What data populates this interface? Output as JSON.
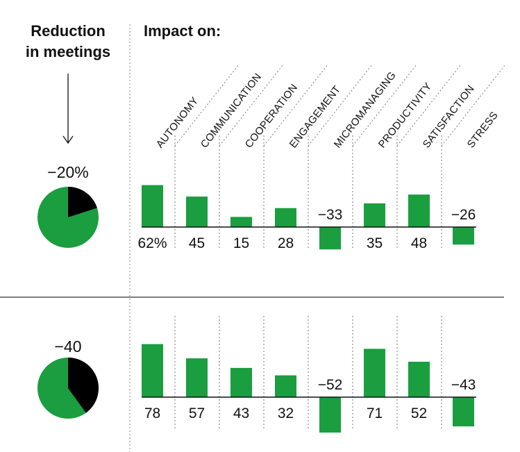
{
  "left_header": [
    "Reduction",
    "in meetings"
  ],
  "right_header": "Impact on:",
  "colors": {
    "bar": "#1a9e3f",
    "pie_remainder": "#000000",
    "ink": "#111111"
  },
  "chart_data": {
    "type": "bar",
    "categories": [
      "AUTONOMY",
      "COMMUNICATION",
      "COOPERATION",
      "ENGAGEMENT",
      "MICROMANAGING",
      "PRODUCTIVITY",
      "SATISFACTION",
      "STRESS"
    ],
    "series": [
      {
        "name": "−20%",
        "reduction_fraction": 0.2,
        "values": [
          62,
          45,
          15,
          28,
          -33,
          35,
          48,
          -26
        ],
        "labels": [
          "62%",
          "45",
          "15",
          "28",
          "−33",
          "35",
          "48",
          "−26"
        ]
      },
      {
        "name": "−40",
        "reduction_fraction": 0.4,
        "values": [
          78,
          57,
          43,
          32,
          -52,
          71,
          52,
          -43
        ],
        "labels": [
          "78",
          "57",
          "43",
          "32",
          "−52",
          "71",
          "52",
          "−43"
        ]
      }
    ],
    "unit": "%"
  }
}
